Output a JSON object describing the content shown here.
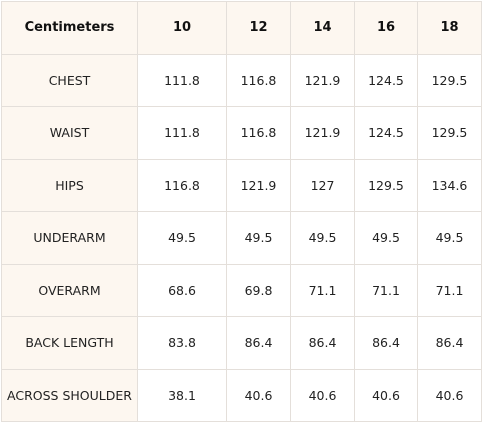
{
  "table": {
    "corner_label": "Centimeters",
    "columns": [
      "10",
      "12",
      "14",
      "16",
      "18"
    ],
    "rows": [
      {
        "label": "CHEST",
        "values": [
          "111.8",
          "116.8",
          "121.9",
          "124.5",
          "129.5"
        ]
      },
      {
        "label": "WAIST",
        "values": [
          "111.8",
          "116.8",
          "121.9",
          "124.5",
          "129.5"
        ]
      },
      {
        "label": "HIPS",
        "values": [
          "116.8",
          "121.9",
          "127",
          "129.5",
          "134.6"
        ]
      },
      {
        "label": "UNDERARM",
        "values": [
          "49.5",
          "49.5",
          "49.5",
          "49.5",
          "49.5"
        ]
      },
      {
        "label": "OVERARM",
        "values": [
          "68.6",
          "69.8",
          "71.1",
          "71.1",
          "71.1"
        ]
      },
      {
        "label": "BACK LENGTH",
        "values": [
          "83.8",
          "86.4",
          "86.4",
          "86.4",
          "86.4"
        ]
      },
      {
        "label": "ACROSS SHOULDER",
        "values": [
          "38.1",
          "40.6",
          "40.6",
          "40.6",
          "40.6"
        ]
      }
    ]
  },
  "colors": {
    "header_bg": "#fdf7f0",
    "border": "#e4dfda",
    "text": "#222222"
  }
}
